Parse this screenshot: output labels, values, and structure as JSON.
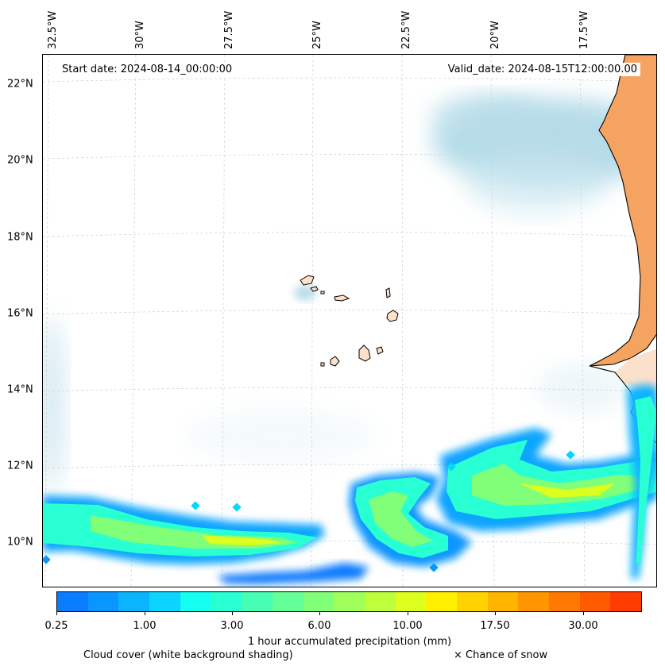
{
  "map": {
    "start_date": "Start date: 2024-08-14_00:00:00",
    "valid_date": "Valid_date: 2024-08-15T12:00:00.00",
    "lon_labels": [
      "32.5°W",
      "30°W",
      "27.5°W",
      "25°W",
      "22.5°W",
      "20°W",
      "17.5°W"
    ],
    "lat_labels": [
      "22°N",
      "20°N",
      "18°N",
      "16°N",
      "14°N",
      "12°N",
      "10°N"
    ],
    "land_color": "#f4a460",
    "land_island_color": "#fde0c8",
    "coastline_color": "#000000",
    "grid": true
  },
  "colorbar": {
    "title": "1 hour accumulated precipitation (mm)",
    "tick_labels": [
      "0.25",
      "1.00",
      "3.00",
      "6.00",
      "10.00",
      "17.50",
      "30.00"
    ],
    "colors": [
      "#0a7cff",
      "#0a96ff",
      "#0ab4ff",
      "#0ad4ff",
      "#14fff0",
      "#28ffd2",
      "#46ffb4",
      "#64ff96",
      "#82ff78",
      "#a0ff5a",
      "#beff3c",
      "#dcff1e",
      "#fff000",
      "#ffd200",
      "#ffb400",
      "#ff9600",
      "#ff7800",
      "#ff5a00",
      "#ff3c00"
    ]
  },
  "legend": {
    "cloud": "Cloud cover (white background shading)",
    "snow": "× Chance of snow"
  }
}
